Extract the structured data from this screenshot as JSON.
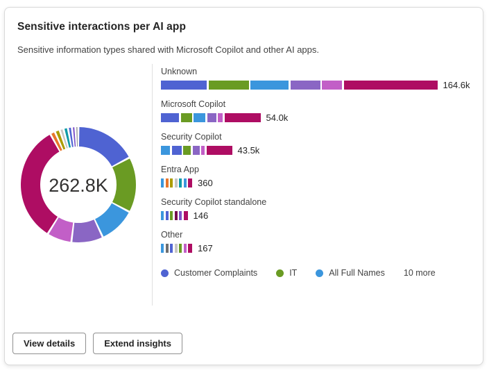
{
  "card": {
    "title": "Sensitive interactions per AI app",
    "subtitle": "Sensitive information types shared with Microsoft Copilot and other AI apps.",
    "actions": {
      "view_details": "View details",
      "extend_insights": "Extend insights"
    }
  },
  "chart_data": {
    "type": "donut+stacked-bars",
    "total_label": "262.8K",
    "palette": {
      "blue": "#4f63d2",
      "green": "#6a9b23",
      "lightblue": "#3b96dd",
      "purple": "#8a66c4",
      "orchid": "#c25fc7",
      "magenta": "#ae0d63",
      "orange": "#e8762c",
      "gold": "#ab9c00",
      "lightgray": "#c8c6c4",
      "teal": "#0f9ba8",
      "violet": "#7c52c9",
      "gray": "#919191",
      "darkgray": "#6e6e6e",
      "darkplum": "#750b50"
    },
    "donut": {
      "note": "degrees clockwise from top; white gaps separate segments",
      "segments": [
        {
          "color": "blue",
          "deg": 62,
          "label": "Customer Complaints"
        },
        {
          "color": "green",
          "deg": 56,
          "label": "IT"
        },
        {
          "color": "lightblue",
          "deg": 37,
          "label": "All Full Names"
        },
        {
          "color": "purple",
          "deg": 32
        },
        {
          "color": "orchid",
          "deg": 25
        },
        {
          "color": "magenta",
          "deg": 119
        },
        {
          "color": "orange",
          "deg": 5
        },
        {
          "color": "gold",
          "deg": 5
        },
        {
          "color": "lightgray",
          "deg": 4
        },
        {
          "color": "teal",
          "deg": 4.5
        },
        {
          "color": "blue",
          "deg": 4
        },
        {
          "color": "violet",
          "deg": 3.5
        },
        {
          "color": "gray",
          "deg": 3
        }
      ]
    },
    "bars": [
      {
        "app": "Unknown",
        "value_label": "164.6k",
        "segments": [
          [
            "blue",
            66
          ],
          [
            "green",
            58
          ],
          [
            "lightblue",
            55
          ],
          [
            "purple",
            43
          ],
          [
            "orchid",
            29
          ],
          [
            "magenta",
            135
          ]
        ]
      },
      {
        "app": "Microsoft Copilot",
        "value_label": "54.0k",
        "segments": [
          [
            "blue",
            26
          ],
          [
            "green",
            16
          ],
          [
            "lightblue",
            17
          ],
          [
            "purple",
            13
          ],
          [
            "orchid",
            7
          ],
          [
            "magenta",
            52
          ]
        ]
      },
      {
        "app": "Security Copilot",
        "value_label": "43.5k",
        "segments": [
          [
            "lightblue",
            13
          ],
          [
            "blue",
            14
          ],
          [
            "green",
            11
          ],
          [
            "purple",
            10
          ],
          [
            "orchid",
            5
          ],
          [
            "magenta",
            37
          ]
        ]
      },
      {
        "app": "Entra App",
        "value_label": "360",
        "segments": [
          [
            "lightblue",
            4
          ],
          [
            "orange",
            4
          ],
          [
            "gold",
            4
          ],
          [
            "lightgray",
            4
          ],
          [
            "teal",
            4
          ],
          [
            "lightblue",
            4
          ],
          [
            "magenta",
            6
          ]
        ]
      },
      {
        "app": "Security Copilot standalone",
        "value_label": "146",
        "segments": [
          [
            "lightblue",
            4
          ],
          [
            "blue",
            4
          ],
          [
            "green",
            4
          ],
          [
            "darkplum",
            4
          ],
          [
            "violet",
            4
          ],
          [
            "magenta",
            6
          ]
        ]
      },
      {
        "app": "Other",
        "value_label": "167",
        "segments": [
          [
            "lightblue",
            4
          ],
          [
            "darkgray",
            4
          ],
          [
            "blue",
            4
          ],
          [
            "lightgray",
            4
          ],
          [
            "green",
            4
          ],
          [
            "orchid",
            4
          ],
          [
            "magenta",
            6
          ]
        ]
      }
    ],
    "legend": [
      {
        "label": "Customer Complaints",
        "color": "blue"
      },
      {
        "label": "IT",
        "color": "green"
      },
      {
        "label": "All Full Names",
        "color": "lightblue"
      },
      {
        "label": "10 more"
      }
    ]
  }
}
